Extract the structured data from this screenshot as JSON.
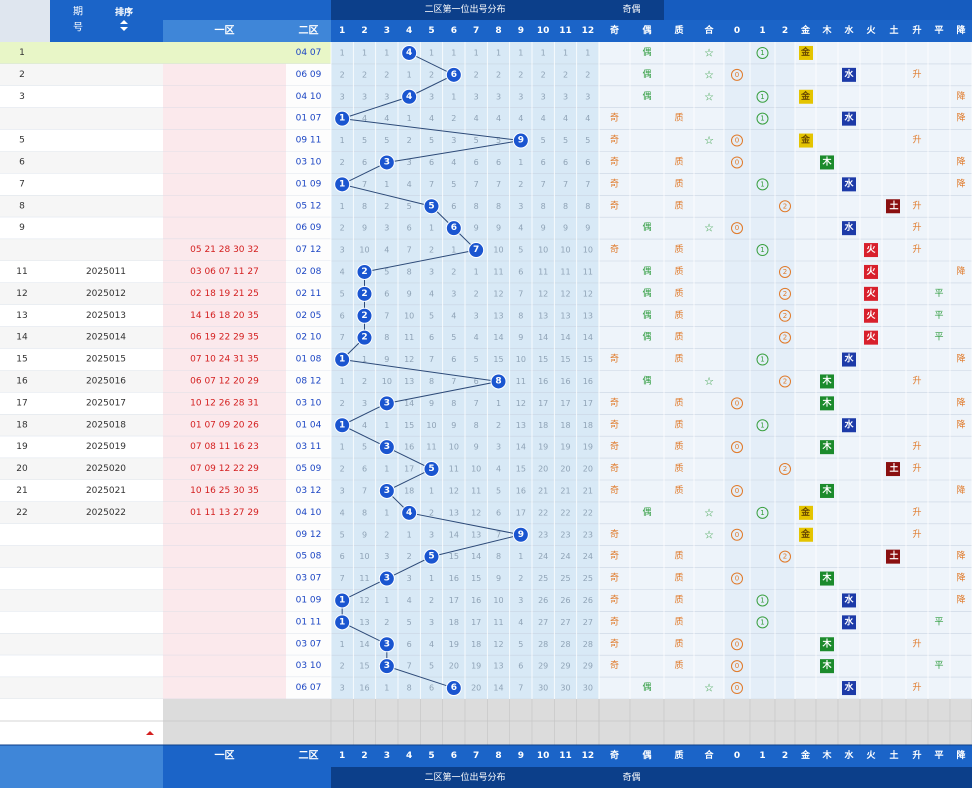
{
  "header": {
    "period_label": "期号",
    "sort_label": "排序",
    "zone1_label": "一区",
    "zone2_label": "二区",
    "distribution_title": "二区第一位出号分布",
    "parity_title": "奇偶"
  },
  "columns": {
    "numbers": [
      "1",
      "2",
      "3",
      "4",
      "5",
      "6",
      "7",
      "8",
      "9",
      "10",
      "11",
      "12"
    ],
    "attributes": [
      "奇",
      "偶",
      "质",
      "合",
      "0",
      "1",
      "2",
      "金",
      "木",
      "水",
      "火",
      "土",
      "升",
      "平",
      "降"
    ]
  },
  "tags": {
    "odd": "奇",
    "even": "偶",
    "prime": "质",
    "composite": "合",
    "r0": "0",
    "r1": "1",
    "r2": "2",
    "metal": "金",
    "wood": "木",
    "water": "水",
    "fire": "火",
    "earth": "土",
    "up": "升",
    "flat": "平",
    "down": "降"
  },
  "colors": {
    "header_blue": "#1b64c8",
    "header_dark": "#0c3f8a",
    "ball_blue": "#1a55d0",
    "zone1_red": "#d42020",
    "zone2_blue": "#1c46c4",
    "grid_bg": "#d8e9f6",
    "row_pink": "#fbe9ec",
    "first_row": "#e8f6c7",
    "wood_green": "#1c8b2c",
    "fire_red": "#d8202c",
    "water_blue": "#1c3aa8",
    "metal_gold": "#e4c400",
    "earth_darkred": "#8a1010"
  },
  "rows": [
    {
      "seq": "1",
      "period": "",
      "zone1": "",
      "zone2": "04 07",
      "hit": 4
    },
    {
      "seq": "2",
      "period": "",
      "zone1": "",
      "zone2": "06 09",
      "hit": 6
    },
    {
      "seq": "3",
      "period": "",
      "zone1": "",
      "zone2": "04 10",
      "hit": 4
    },
    {
      "seq": "",
      "period": "",
      "zone1": "",
      "zone2": "01 07",
      "hit": 1
    },
    {
      "seq": "5",
      "period": "",
      "zone1": "",
      "zone2": "09 11",
      "hit": 9
    },
    {
      "seq": "6",
      "period": "",
      "zone1": "",
      "zone2": "03 10",
      "hit": 3
    },
    {
      "seq": "7",
      "period": "",
      "zone1": "",
      "zone2": "01 09",
      "hit": 1
    },
    {
      "seq": "8",
      "period": "",
      "zone1": "",
      "zone2": "05 12",
      "hit": 5
    },
    {
      "seq": "9",
      "period": "",
      "zone1": "",
      "zone2": "06 09",
      "hit": 6
    },
    {
      "seq": "",
      "period": "",
      "zone1": "05 21 28 30 32",
      "zone2": "07 12",
      "hit": 7
    },
    {
      "seq": "11",
      "period": "2025011",
      "zone1": "03 06 07 11 27",
      "zone2": "02 08",
      "hit": 2
    },
    {
      "seq": "12",
      "period": "2025012",
      "zone1": "02 18 19 21 25",
      "zone2": "02 11",
      "hit": 2
    },
    {
      "seq": "13",
      "period": "2025013",
      "zone1": "14 16 18 20 35",
      "zone2": "02 05",
      "hit": 2
    },
    {
      "seq": "14",
      "period": "2025014",
      "zone1": "06 19 22 29 35",
      "zone2": "02 10",
      "hit": 2
    },
    {
      "seq": "15",
      "period": "2025015",
      "zone1": "07 10 24 31 35",
      "zone2": "01 08",
      "hit": 1
    },
    {
      "seq": "16",
      "period": "2025016",
      "zone1": "06 07 12 20 29",
      "zone2": "08 12",
      "hit": 8
    },
    {
      "seq": "17",
      "period": "2025017",
      "zone1": "10 12 26 28 31",
      "zone2": "03 10",
      "hit": 3
    },
    {
      "seq": "18",
      "period": "2025018",
      "zone1": "01 07 09 20 26",
      "zone2": "01 04",
      "hit": 1
    },
    {
      "seq": "19",
      "period": "2025019",
      "zone1": "07 08 11 16 23",
      "zone2": "03 11",
      "hit": 3
    },
    {
      "seq": "20",
      "period": "2025020",
      "zone1": "07 09 12 22 29",
      "zone2": "05 09",
      "hit": 5
    },
    {
      "seq": "21",
      "period": "2025021",
      "zone1": "10 16 25 30 35",
      "zone2": "03 12",
      "hit": 3
    },
    {
      "seq": "22",
      "period": "2025022",
      "zone1": "01 11 13 27 29",
      "zone2": "04 10",
      "hit": 4
    },
    {
      "seq": "",
      "period": "",
      "zone1": "",
      "zone2": "09 12",
      "hit": 9
    },
    {
      "seq": "",
      "period": "",
      "zone1": "",
      "zone2": "05 08",
      "hit": 5
    },
    {
      "seq": "",
      "period": "",
      "zone1": "",
      "zone2": "03 07",
      "hit": 3
    },
    {
      "seq": "",
      "period": "",
      "zone1": "",
      "zone2": "01 09",
      "hit": 1
    },
    {
      "seq": "",
      "period": "",
      "zone1": "",
      "zone2": "01 11",
      "hit": 1
    },
    {
      "seq": "",
      "period": "",
      "zone1": "",
      "zone2": "03 07",
      "hit": 3
    },
    {
      "seq": "",
      "period": "",
      "zone1": "",
      "zone2": "03 10",
      "hit": 3
    },
    {
      "seq": "",
      "period": "",
      "zone1": "",
      "zone2": "06 07",
      "hit": 6
    }
  ]
}
